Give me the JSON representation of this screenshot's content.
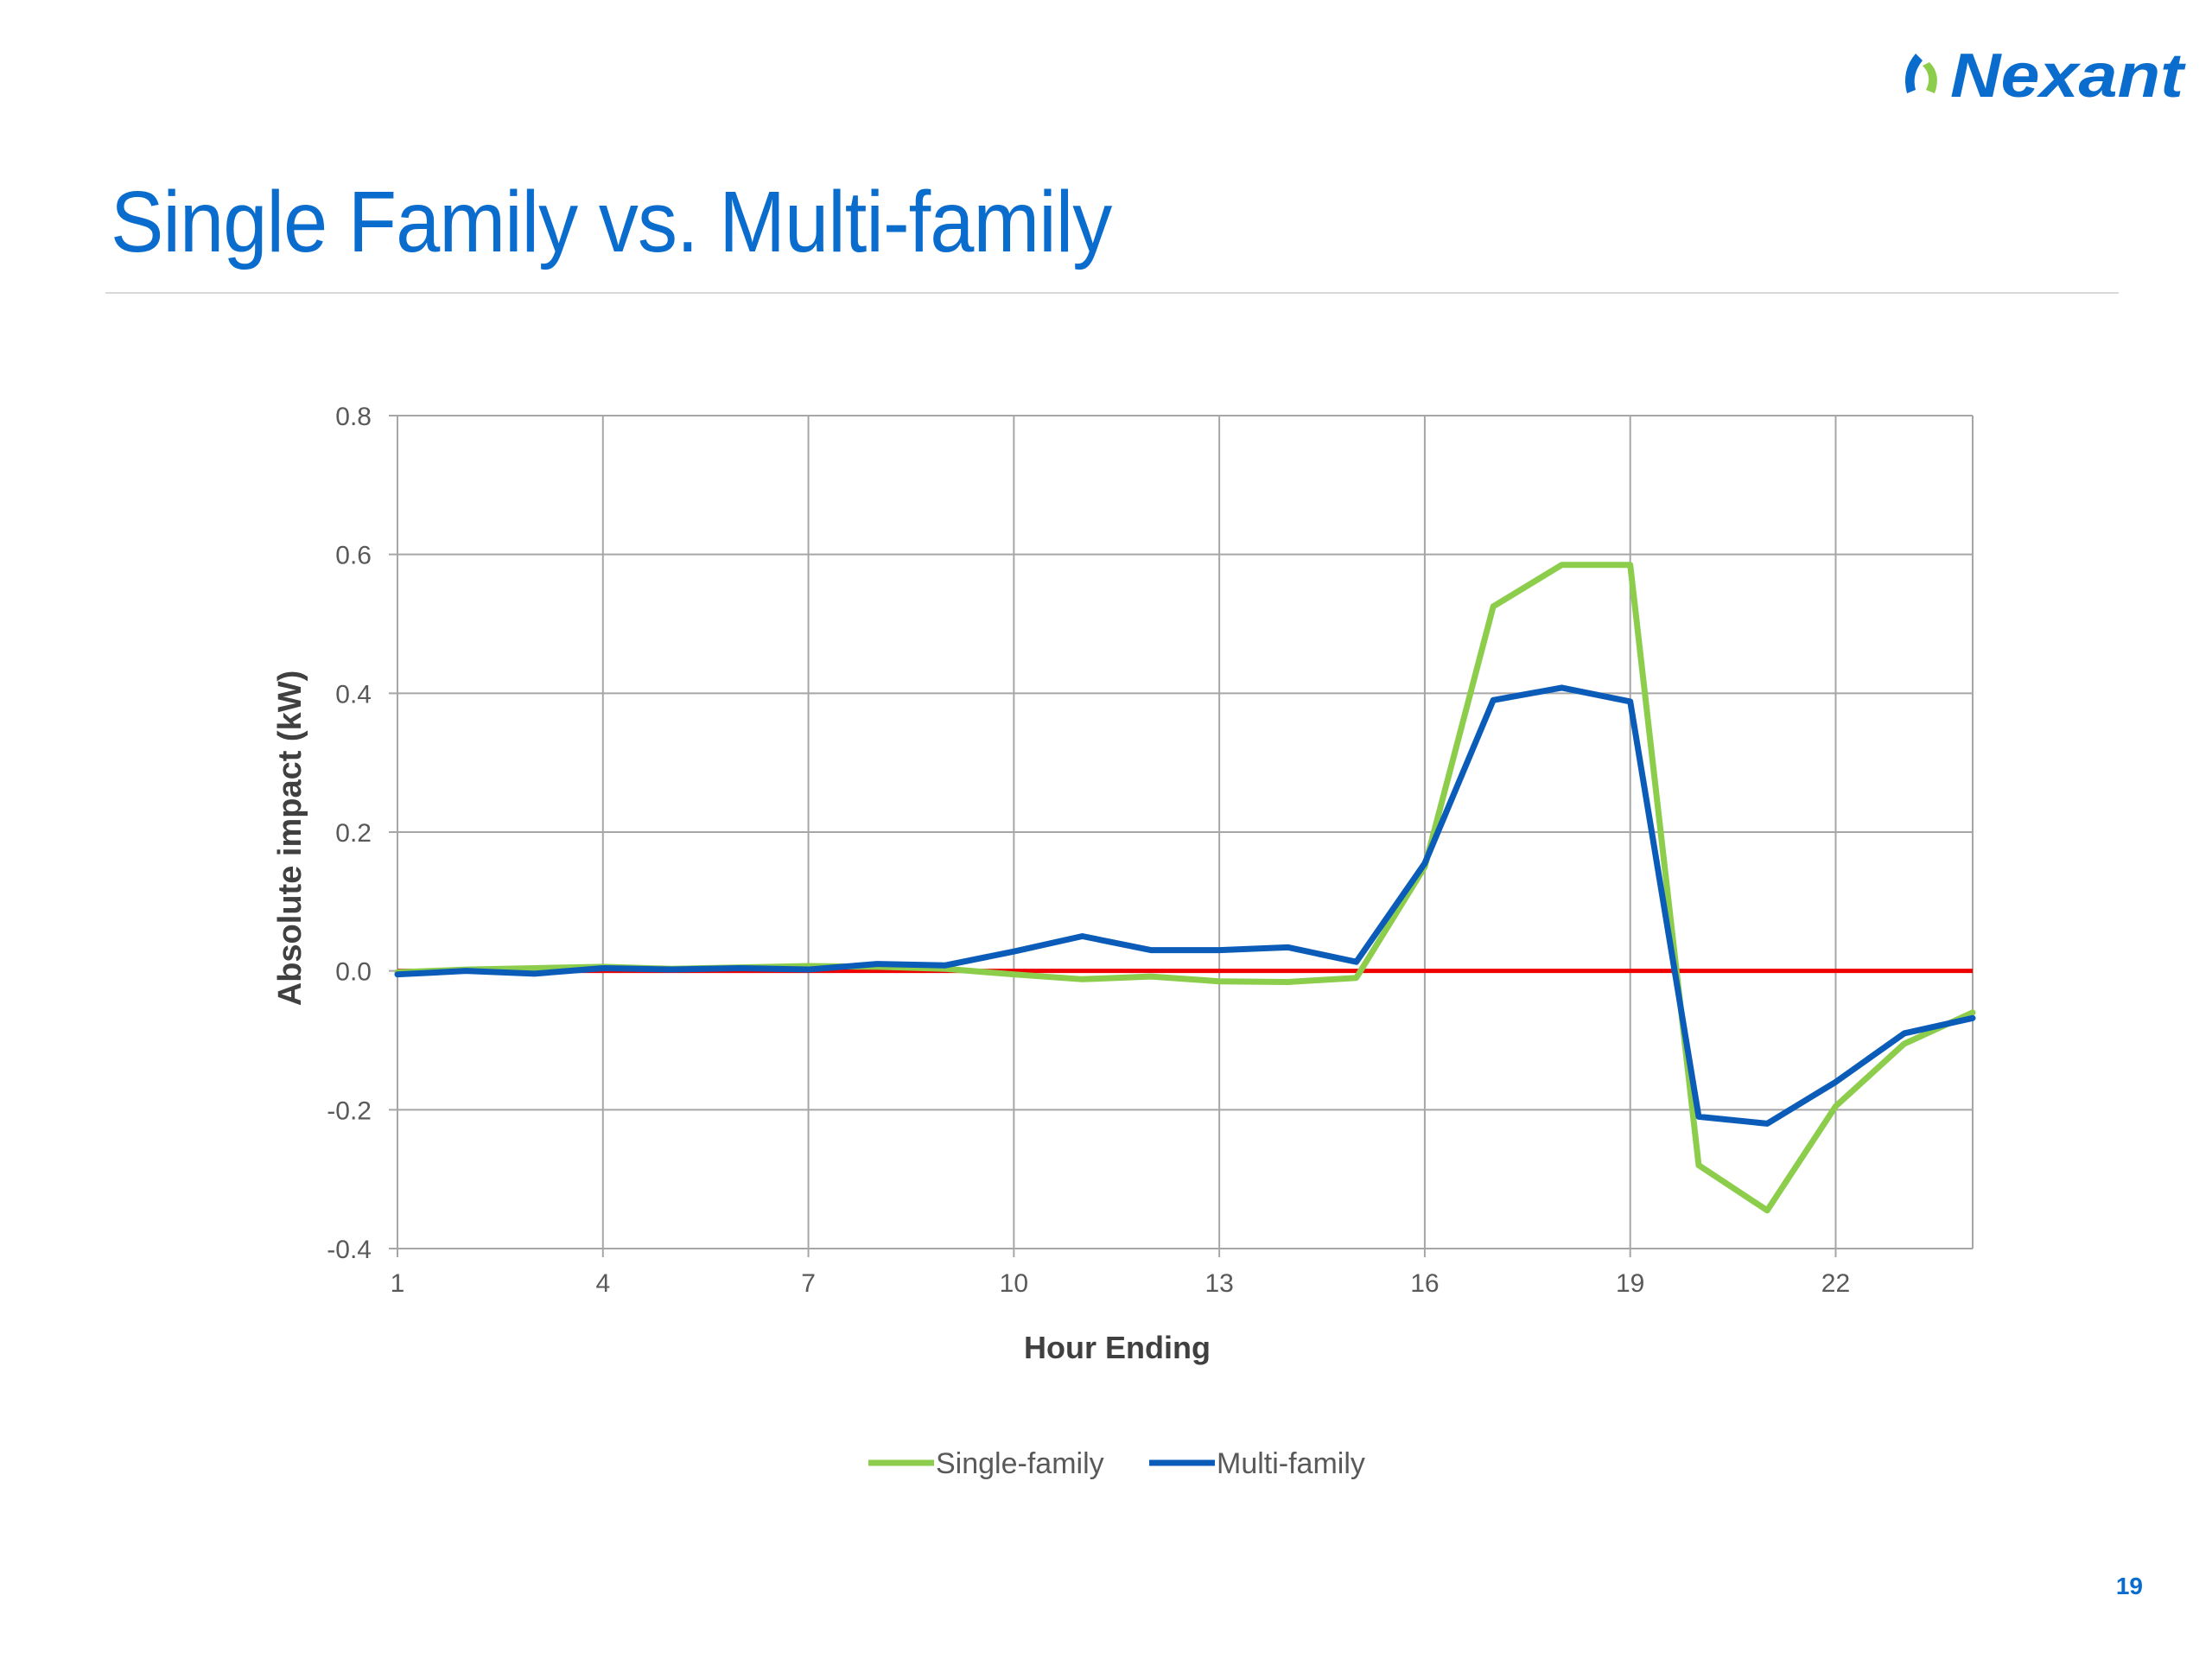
{
  "slide": {
    "title": "Single Family vs. Multi-family",
    "page_number": "19",
    "logo_text": "Nexant"
  },
  "colors": {
    "title": "#0a6ccd",
    "single_family": "#8ccd4c",
    "multi_family": "#0b5cb8",
    "zero_line": "#ee0000",
    "grid": "#a6a6a6",
    "logo_accent": "#8ccd4c"
  },
  "chart_data": {
    "type": "line",
    "xlabel": "Hour Ending",
    "ylabel": "Absolute impact (kW)",
    "xlim": [
      1,
      24
    ],
    "ylim": [
      -0.4,
      0.8
    ],
    "x_ticks": [
      "1",
      "4",
      "7",
      "10",
      "13",
      "16",
      "19",
      "22"
    ],
    "y_ticks": [
      "0.8",
      "0.6",
      "0.4",
      "0.2",
      "0.0",
      "-0.2",
      "-0.4"
    ],
    "grid": true,
    "legend_position": "bottom",
    "x": [
      1,
      2,
      3,
      4,
      5,
      6,
      7,
      8,
      9,
      10,
      11,
      12,
      13,
      14,
      15,
      16,
      17,
      18,
      19,
      20,
      21,
      22,
      23,
      24
    ],
    "series": [
      {
        "name": "Single-family",
        "values": [
          -0.002,
          0.002,
          0.004,
          0.006,
          0.003,
          0.005,
          0.007,
          0.006,
          0.003,
          -0.005,
          -0.012,
          -0.008,
          -0.015,
          -0.016,
          -0.01,
          0.15,
          0.525,
          0.585,
          0.585,
          -0.28,
          -0.345,
          -0.195,
          -0.105,
          -0.06
        ]
      },
      {
        "name": "Multi-family",
        "values": [
          -0.005,
          0.0,
          -0.004,
          0.004,
          0.002,
          0.004,
          0.002,
          0.01,
          0.008,
          0.028,
          0.05,
          0.03,
          0.03,
          0.034,
          0.013,
          0.155,
          0.39,
          0.408,
          0.388,
          -0.21,
          -0.22,
          -0.16,
          -0.09,
          -0.068
        ]
      }
    ],
    "reference_line": {
      "y": 0.0
    }
  }
}
